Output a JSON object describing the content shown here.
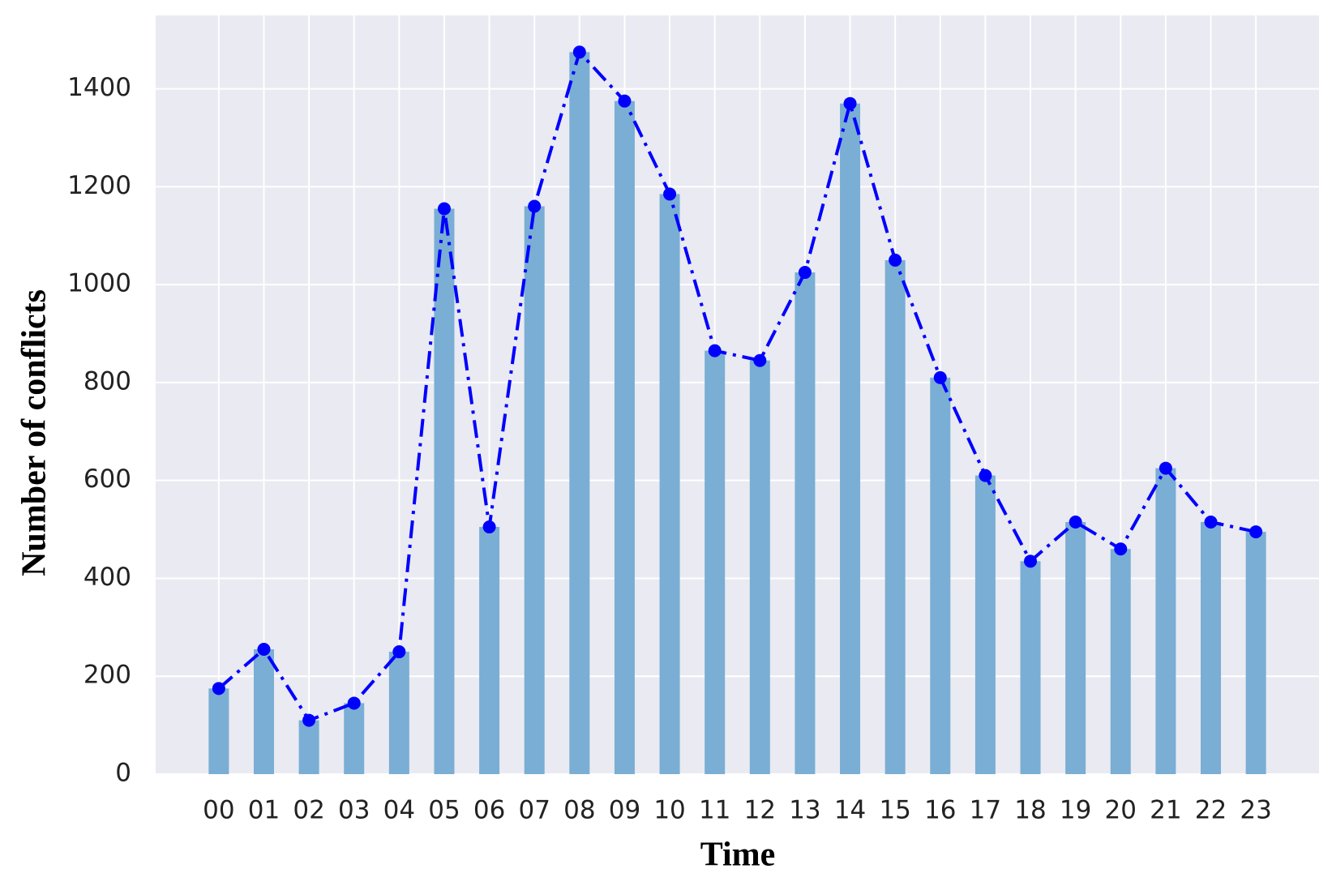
{
  "chart_data": {
    "type": "bar_line",
    "x_label": "Time",
    "y_label": "Number of conflicts",
    "categories": [
      "00",
      "01",
      "02",
      "03",
      "04",
      "05",
      "06",
      "07",
      "08",
      "09",
      "10",
      "11",
      "12",
      "13",
      "14",
      "15",
      "16",
      "17",
      "18",
      "19",
      "20",
      "21",
      "22",
      "23"
    ],
    "series": [
      {
        "type": "bar",
        "color": "#7aaed4",
        "values": [
          175,
          255,
          110,
          145,
          250,
          1155,
          505,
          1160,
          1475,
          1375,
          1185,
          865,
          845,
          1025,
          1370,
          1050,
          810,
          610,
          435,
          515,
          460,
          625,
          515,
          495
        ]
      },
      {
        "type": "line",
        "color": "#0000ff",
        "values": [
          175,
          255,
          110,
          145,
          250,
          1155,
          505,
          1160,
          1475,
          1375,
          1185,
          865,
          845,
          1025,
          1370,
          1050,
          810,
          610,
          435,
          515,
          460,
          625,
          515,
          495
        ]
      }
    ],
    "ylim": [
      0,
      1550
    ],
    "yticks": [
      0,
      200,
      400,
      600,
      800,
      1000,
      1200,
      1400
    ],
    "grid": true,
    "background": "#eaeaf2"
  }
}
